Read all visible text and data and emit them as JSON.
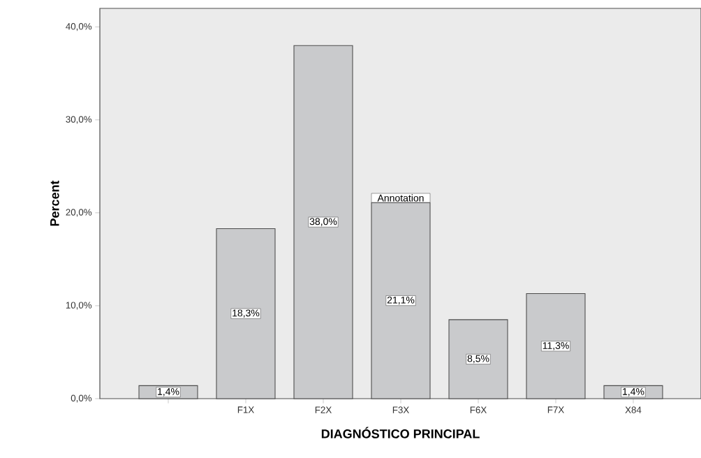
{
  "chart_data": {
    "type": "bar",
    "xlabel": "DIAGNÓSTICO PRINCIPAL",
    "ylabel": "Percent",
    "categories": [
      null,
      "F1X",
      "F2X",
      "F3X",
      "F6X",
      "F7X",
      "X84"
    ],
    "values": [
      1.4,
      18.3,
      38.0,
      21.1,
      8.5,
      11.3,
      1.4
    ],
    "value_labels": [
      "1,4%",
      "18,3%",
      "38,0%",
      "21,1%",
      "8,5%",
      "11,3%",
      "1,4%"
    ],
    "color": "#c9cacc",
    "ylim": [
      0,
      42
    ],
    "yticks": [
      {
        "value": 0,
        "label": "0,0%"
      },
      {
        "value": 10,
        "label": "10,0%"
      },
      {
        "value": 20,
        "label": "20,0%"
      },
      {
        "value": 30,
        "label": "30,0%"
      },
      {
        "value": 40,
        "label": "40,0%"
      }
    ],
    "annotations": [
      {
        "text": "Annotation",
        "x": "F3X",
        "y": 21.1
      }
    ],
    "grid": false
  }
}
